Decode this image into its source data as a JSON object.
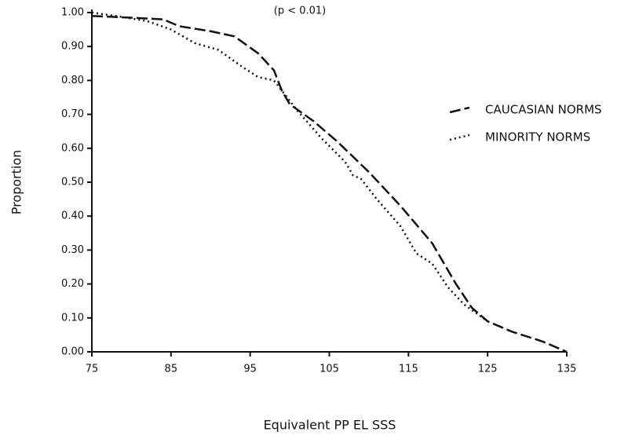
{
  "chart_data": {
    "type": "line",
    "title": "(p < 0.01)",
    "x_label": "Equivalent PP EL SSS",
    "y_label": "Proportion",
    "xlim": [
      75,
      135
    ],
    "xticks": [
      75,
      85,
      95,
      105,
      115,
      125,
      135
    ],
    "ylim": [
      0,
      1
    ],
    "yticks": [
      {
        "value": 0,
        "label": "0.00"
      },
      {
        "value": 0.1,
        "label": "0.10"
      },
      {
        "value": 0.2,
        "label": "0.20"
      },
      {
        "value": 0.3,
        "label": "0.30"
      },
      {
        "value": 0.4,
        "label": "0.40"
      },
      {
        "value": 0.5,
        "label": "0.50"
      },
      {
        "value": 0.6,
        "label": "0.60"
      },
      {
        "value": 0.7,
        "label": "0.70"
      },
      {
        "value": 0.8,
        "label": "0.80"
      },
      {
        "value": 0.9,
        "label": "0.90"
      },
      {
        "value": 1,
        "label": "1.00"
      }
    ],
    "grid": false,
    "legend": "right",
    "series": [
      {
        "name": "CAUCASIAN NORMS",
        "color": "#111111",
        "style": "dashed",
        "x": [
          75,
          80,
          84,
          86,
          90,
          93,
          96,
          98,
          99,
          100,
          103,
          106,
          110,
          114,
          118,
          121,
          123,
          125,
          128,
          132,
          135
        ],
        "values": [
          0.99,
          0.985,
          0.98,
          0.96,
          0.945,
          0.93,
          0.88,
          0.83,
          0.77,
          0.73,
          0.68,
          0.62,
          0.53,
          0.43,
          0.32,
          0.2,
          0.13,
          0.09,
          0.06,
          0.03,
          0.0
        ]
      },
      {
        "name": "MINORITY NORMS",
        "color": "#111111",
        "style": "dotted",
        "x": [
          75,
          78,
          82,
          85,
          88,
          91,
          94,
          96,
          98,
          99,
          101,
          104,
          107,
          108,
          109,
          111,
          114,
          116,
          118,
          120,
          122,
          125
        ],
        "values": [
          1.0,
          0.99,
          0.975,
          0.95,
          0.91,
          0.89,
          0.84,
          0.81,
          0.8,
          0.77,
          0.71,
          0.63,
          0.56,
          0.52,
          0.51,
          0.45,
          0.37,
          0.29,
          0.26,
          0.19,
          0.14,
          0.09
        ]
      }
    ]
  }
}
